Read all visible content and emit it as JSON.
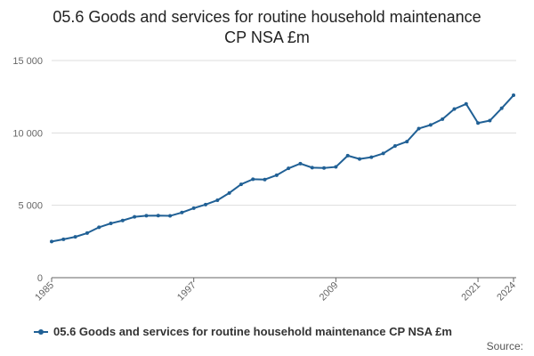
{
  "chart_data": {
    "type": "line",
    "title": "05.6 Goods and services for routine household maintenance CP NSA £m",
    "title_lines": [
      "05.6 Goods and services for routine household maintenance",
      "CP NSA £m"
    ],
    "xlabel": "",
    "ylabel": "",
    "x": [
      1985,
      1986,
      1987,
      1988,
      1989,
      1990,
      1991,
      1992,
      1993,
      1994,
      1995,
      1996,
      1997,
      1998,
      1999,
      2000,
      2001,
      2002,
      2003,
      2004,
      2005,
      2006,
      2007,
      2008,
      2009,
      2010,
      2011,
      2012,
      2013,
      2014,
      2015,
      2016,
      2017,
      2018,
      2019,
      2020,
      2021,
      2022,
      2023,
      2024
    ],
    "series": [
      {
        "name": "05.6 Goods and services for routine household maintenance CP NSA £m",
        "values": [
          2500,
          2650,
          2820,
          3080,
          3480,
          3750,
          3950,
          4200,
          4280,
          4290,
          4270,
          4500,
          4800,
          5050,
          5350,
          5850,
          6450,
          6800,
          6780,
          7080,
          7550,
          7880,
          7600,
          7580,
          7650,
          8430,
          8200,
          8320,
          8580,
          9100,
          9400,
          10300,
          10550,
          10950,
          11650,
          12000,
          10680,
          10850,
          11700,
          12600
        ]
      }
    ],
    "xlim": [
      1985,
      2024
    ],
    "ylim": [
      0,
      15000
    ],
    "x_ticks": [
      "1985",
      "1997",
      "2009",
      "2021",
      "2024"
    ],
    "y_ticks": [
      "0",
      "5 000",
      "10 000",
      "15 000"
    ],
    "grid": true,
    "legend_position": "bottom",
    "source_label": "Source:",
    "colors": {
      "series": "#206095",
      "grid": "#dddddd",
      "axis": "#666666",
      "tick_text": "#666666"
    }
  }
}
